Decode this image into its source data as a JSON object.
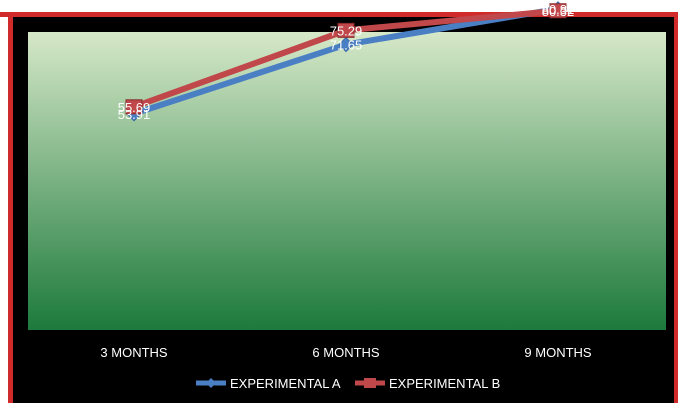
{
  "chart_data": {
    "type": "line",
    "categories": [
      "3 MONTHS",
      "6 MONTHS",
      "9 MONTHS"
    ],
    "series": [
      {
        "name": "EXPERIMENTAL A",
        "values": [
          53.91,
          71.65,
          80.82
        ],
        "labels": [
          "53.91",
          "71.65",
          "80.82"
        ],
        "color": "#4a7fc4"
      },
      {
        "name": "EXPERIMENTAL B",
        "values": [
          55.69,
          75.29,
          80.32
        ],
        "labels": [
          "55.69",
          "75.29",
          "80.32"
        ],
        "color": "#c0474a"
      }
    ],
    "title": "",
    "xlabel": "",
    "ylabel": "",
    "ylim": [
      0,
      100
    ],
    "grid": false,
    "legend": "bottom",
    "colors": {
      "plot_top": "#d6e8c8",
      "plot_bottom": "#1c7a3c",
      "background": "#000000",
      "frame": "#d02a2a"
    }
  }
}
